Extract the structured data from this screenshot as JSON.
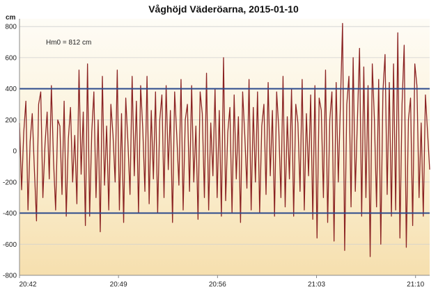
{
  "chart_data": {
    "type": "line",
    "title": "Våghöjd Väderöarna, 2015-01-10",
    "y_unit": "cm",
    "annotation": "Hm0 = 812 cm",
    "ylim": [
      -800,
      850
    ],
    "yticks": [
      800,
      600,
      400,
      200,
      0,
      -200,
      -400,
      -600,
      -800
    ],
    "xlim": [
      "20:42",
      "21:11"
    ],
    "xticks": [
      "20:42",
      "20:49",
      "20:56",
      "21:03",
      "21:10"
    ],
    "reference_lines": [
      400,
      -400
    ],
    "grid": true,
    "colors": {
      "series": "#8b2323",
      "reference": "#2c4a8c",
      "grid": "#cfcfcf",
      "background_top": "#fefcf6",
      "background_bottom": "#f6dfae"
    },
    "series": [
      {
        "values": [
          180,
          -250,
          120,
          320,
          -380,
          60,
          240,
          -120,
          -450,
          300,
          380,
          -300,
          40,
          250,
          -180,
          420,
          -60,
          -380,
          200,
          160,
          -280,
          320,
          -420,
          80,
          280,
          -200,
          100,
          -340,
          520,
          -150,
          250,
          -480,
          560,
          -420,
          120,
          380,
          -300,
          200,
          -520,
          480,
          -220,
          160,
          -380,
          300,
          100,
          -200,
          520,
          -380,
          240,
          -460,
          340,
          60,
          -280,
          480,
          -160,
          320,
          -400,
          420,
          140,
          -260,
          480,
          -340,
          260,
          -180,
          380,
          -400,
          200,
          360,
          -300,
          420,
          -120,
          260,
          -460,
          380,
          100,
          -220,
          460,
          -380,
          200,
          300,
          -260,
          420,
          -200,
          160,
          -440,
          380,
          240,
          -300,
          500,
          -380,
          180,
          -160,
          400,
          -300,
          260,
          -420,
          600,
          -320,
          120,
          280,
          -400,
          360,
          -180,
          220,
          -460,
          380,
          100,
          -240,
          460,
          -380,
          280,
          -200,
          380,
          -400,
          160,
          300,
          -280,
          440,
          -160,
          260,
          -420,
          380,
          140,
          -300,
          480,
          -360,
          220,
          -180,
          400,
          -420,
          300,
          180,
          -260,
          460,
          -380,
          240,
          -160,
          360,
          -440,
          420,
          -560,
          340,
          260,
          -300,
          520,
          -460,
          200,
          380,
          -580,
          440,
          -200,
          300,
          820,
          -640,
          300,
          480,
          -360,
          600,
          -260,
          200,
          660,
          -420,
          540,
          -300,
          420,
          -680,
          560,
          200,
          -360,
          460,
          -600,
          380,
          620,
          -280,
          440,
          -420,
          560,
          -380,
          760,
          -560,
          300,
          680,
          -620,
          200,
          340,
          -480,
          560,
          420,
          -300,
          180,
          -420,
          360,
          120,
          -120
        ]
      }
    ]
  }
}
